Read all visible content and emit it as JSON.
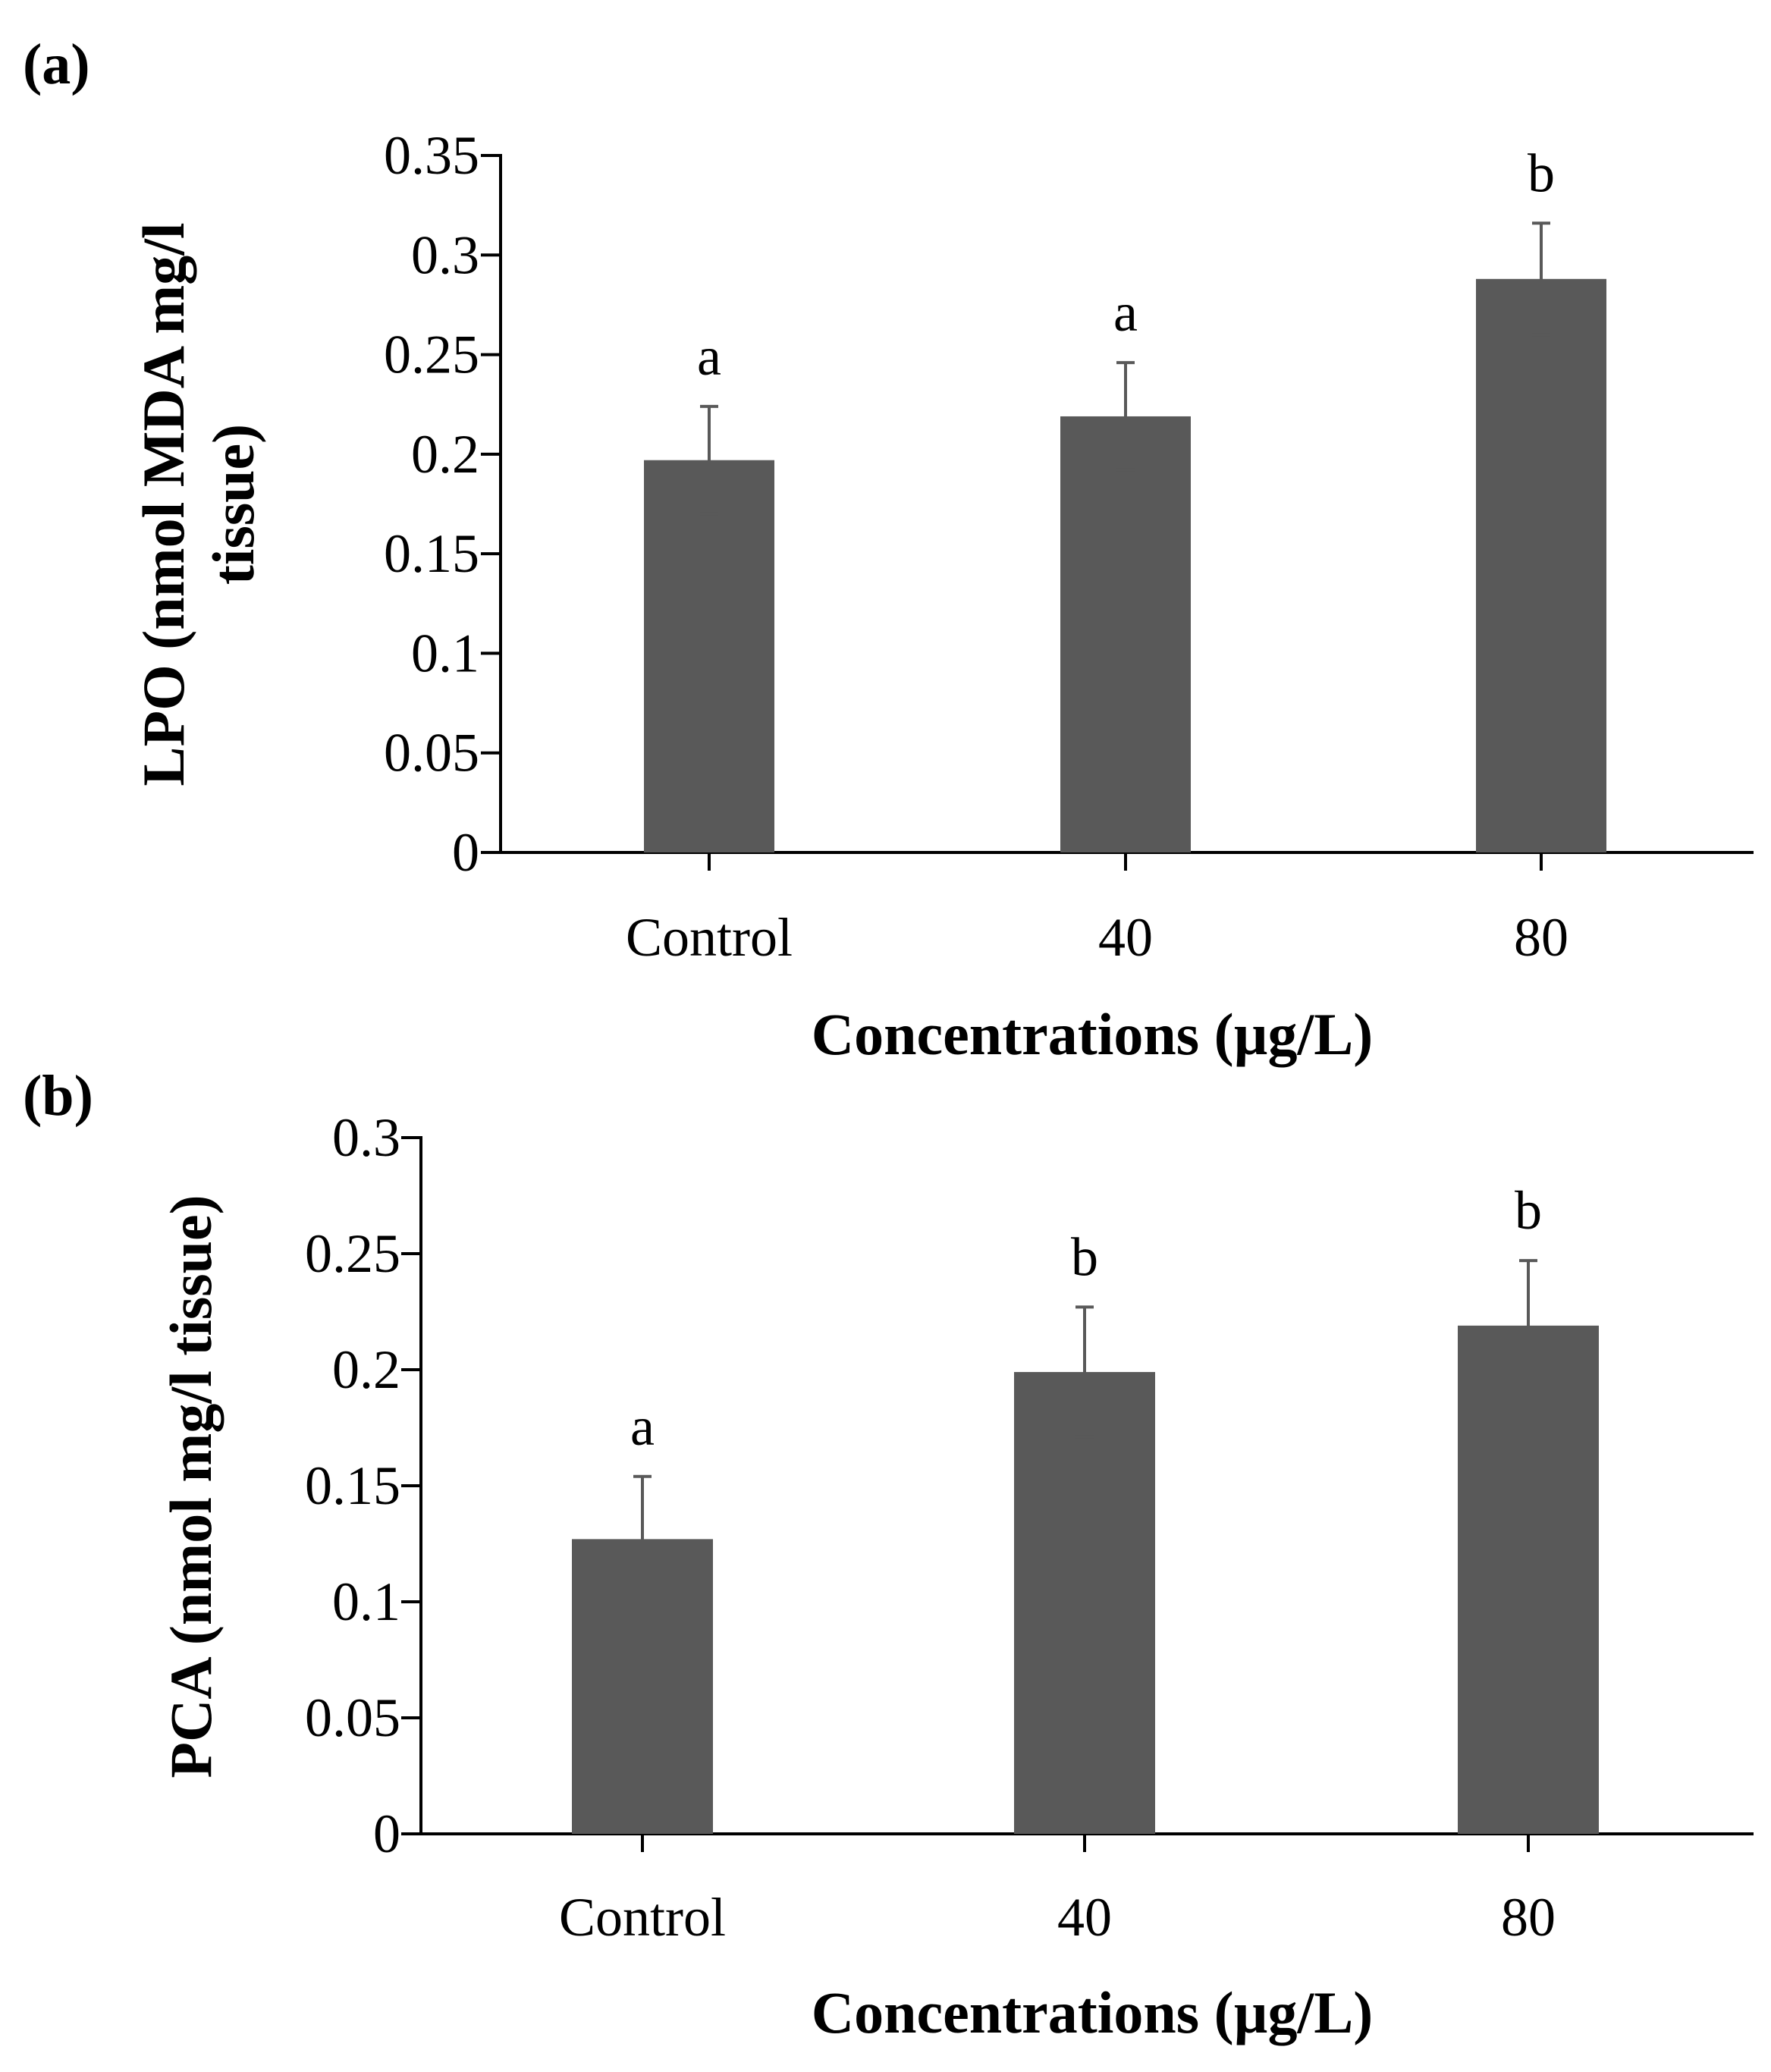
{
  "chart_data": [
    {
      "type": "bar",
      "panel_label": "(a)",
      "categories": [
        "Control",
        "40",
        "80"
      ],
      "values": [
        0.197,
        0.219,
        0.288
      ],
      "errors": [
        0.027,
        0.027,
        0.028
      ],
      "significance": [
        "a",
        "a",
        "b"
      ],
      "xlabel": "Concentrations (µg/L)",
      "ylabel_lines": [
        "LPO (nmol MDA mg/l",
        "tissue)"
      ],
      "ylim": [
        0,
        0.35
      ],
      "yticks": [
        0,
        0.05,
        0.1,
        0.15,
        0.2,
        0.25,
        0.3,
        0.35
      ],
      "ytick_labels": [
        "0",
        "0.05",
        "0.1",
        "0.15",
        "0.2",
        "0.25",
        "0.3",
        "0.35"
      ],
      "bar_color": "#595959",
      "grid": false,
      "legend": "none"
    },
    {
      "type": "bar",
      "panel_label": "(b)",
      "categories": [
        "Control",
        "40",
        "80"
      ],
      "values": [
        0.127,
        0.199,
        0.219
      ],
      "errors": [
        0.027,
        0.028,
        0.028
      ],
      "significance": [
        "a",
        "b",
        "b"
      ],
      "xlabel": "Concentrations (µg/L)",
      "ylabel_lines": [
        "PCA (nmol mg/l tissue)"
      ],
      "ylim": [
        0,
        0.3
      ],
      "yticks": [
        0,
        0.05,
        0.1,
        0.15,
        0.2,
        0.25,
        0.3
      ],
      "ytick_labels": [
        "0",
        "0.05",
        "0.1",
        "0.15",
        "0.2",
        "0.25",
        "0.3"
      ],
      "bar_color": "#595959",
      "grid": false,
      "legend": "none"
    }
  ]
}
